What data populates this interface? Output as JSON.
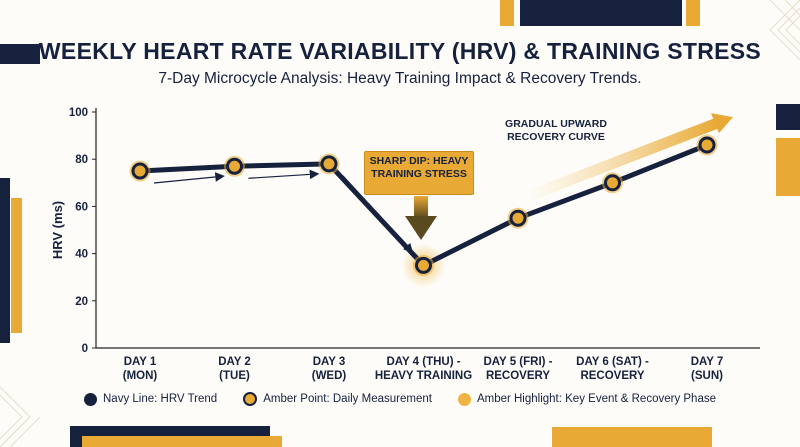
{
  "title": "WEEKLY HEART RATE VARIABILITY (HRV) & TRAINING STRESS",
  "subtitle": "7-Day Microcycle Analysis: Heavy Training Impact & Recovery Trends.",
  "chart_data": {
    "type": "line",
    "categories": [
      "DAY 1 (MON)",
      "DAY 2 (TUE)",
      "DAY 3 (WED)",
      "DAY 4 (THU) - HEAVY TRAINING",
      "DAY 5 (FRI) - RECOVERY",
      "DAY 6 (SAT) - RECOVERY",
      "DAY 7 (SUN)"
    ],
    "category_lines": [
      [
        "DAY 1",
        "(MON)"
      ],
      [
        "DAY 2",
        "(TUE)"
      ],
      [
        "DAY 3",
        "(WED)"
      ],
      [
        "DAY 4 (THU) -",
        "HEAVY TRAINING"
      ],
      [
        "DAY 5 (FRI) -",
        "RECOVERY"
      ],
      [
        "DAY 6 (SAT) -",
        "RECOVERY"
      ],
      [
        "DAY 7",
        "(SUN)"
      ]
    ],
    "series": [
      {
        "values": [
          75,
          77,
          78,
          35,
          55,
          70,
          86
        ]
      }
    ],
    "ylabel": "HRV (ms)",
    "xlabel": "",
    "ylim": [
      0,
      100
    ],
    "yticks": [
      0,
      20,
      40,
      60,
      80,
      100
    ],
    "grid": false,
    "highlight_index": 3,
    "annotations": {
      "dip": "SHARP DIP: HEAVY TRAINING STRESS",
      "recovery": "GRADUAL UPWARD RECOVERY CURVE"
    },
    "legend": [
      {
        "label": "Navy Line: HRV Trend",
        "color": "#16213e"
      },
      {
        "label": "Amber Point: Daily Measurement",
        "color": "#e8a935"
      },
      {
        "label": "Amber Highlight: Key Event & Recovery Phase",
        "color": "#f0b445"
      }
    ],
    "colors": {
      "navy": "#16213e",
      "amber": "#e8a935"
    }
  }
}
